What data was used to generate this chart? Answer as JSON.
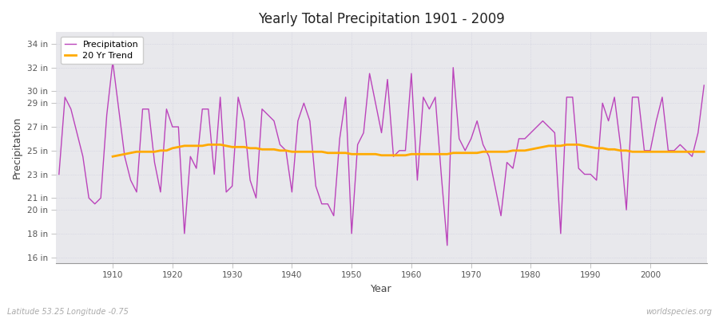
{
  "title": "Yearly Total Precipitation 1901 - 2009",
  "xlabel": "Year",
  "ylabel": "Precipitation",
  "subtitle_left": "Latitude 53.25 Longitude -0.75",
  "subtitle_right": "worldspecies.org",
  "outer_bg_color": "#ffffff",
  "plot_bg_color": "#e8e8ec",
  "line_color": "#bb44bb",
  "trend_color": "#ffaa00",
  "ylim": [
    15.5,
    35.0
  ],
  "yticks": [
    16,
    18,
    20,
    21,
    23,
    25,
    27,
    29,
    30,
    32,
    34
  ],
  "xlim": [
    1900.5,
    2009.5
  ],
  "years": [
    1901,
    1902,
    1903,
    1904,
    1905,
    1906,
    1907,
    1908,
    1909,
    1910,
    1911,
    1912,
    1913,
    1914,
    1915,
    1916,
    1917,
    1918,
    1919,
    1920,
    1921,
    1922,
    1923,
    1924,
    1925,
    1926,
    1927,
    1928,
    1929,
    1930,
    1931,
    1932,
    1933,
    1934,
    1935,
    1936,
    1937,
    1938,
    1939,
    1940,
    1941,
    1942,
    1943,
    1944,
    1945,
    1946,
    1947,
    1948,
    1949,
    1950,
    1951,
    1952,
    1953,
    1954,
    1955,
    1956,
    1957,
    1958,
    1959,
    1960,
    1961,
    1962,
    1963,
    1964,
    1965,
    1966,
    1967,
    1968,
    1969,
    1970,
    1971,
    1972,
    1973,
    1974,
    1975,
    1976,
    1977,
    1978,
    1979,
    1980,
    1981,
    1982,
    1983,
    1984,
    1985,
    1986,
    1987,
    1988,
    1989,
    1990,
    1991,
    1992,
    1993,
    1994,
    1995,
    1996,
    1997,
    1998,
    1999,
    2000,
    2001,
    2002,
    2003,
    2004,
    2005,
    2006,
    2007,
    2008,
    2009
  ],
  "precip": [
    23.0,
    29.5,
    28.5,
    26.5,
    24.5,
    21.0,
    20.5,
    21.0,
    28.0,
    32.5,
    28.5,
    24.5,
    22.5,
    21.5,
    28.5,
    28.5,
    24.0,
    21.5,
    28.5,
    27.0,
    27.0,
    18.0,
    24.5,
    23.5,
    28.5,
    28.5,
    23.0,
    29.5,
    21.5,
    22.0,
    29.5,
    27.5,
    22.5,
    21.0,
    28.5,
    28.0,
    27.5,
    25.5,
    25.0,
    21.5,
    27.5,
    29.0,
    27.5,
    22.0,
    20.5,
    20.5,
    19.5,
    26.0,
    29.5,
    18.0,
    25.5,
    26.5,
    31.5,
    29.0,
    26.5,
    31.0,
    24.5,
    25.0,
    25.0,
    31.5,
    22.5,
    29.5,
    28.5,
    29.5,
    23.0,
    17.0,
    32.0,
    26.0,
    25.0,
    26.0,
    27.5,
    25.5,
    24.5,
    22.0,
    19.5,
    24.0,
    23.5,
    26.0,
    26.0,
    26.5,
    27.0,
    27.5,
    27.0,
    26.5,
    18.0,
    29.5,
    29.5,
    23.5,
    23.0,
    23.0,
    22.5,
    29.0,
    27.5,
    29.5,
    25.5,
    20.0,
    29.5,
    29.5,
    25.0,
    25.0,
    27.5,
    29.5,
    25.0,
    25.0,
    25.5,
    25.0,
    24.5,
    26.5,
    30.5
  ],
  "trend": [
    null,
    null,
    null,
    null,
    null,
    null,
    null,
    null,
    null,
    24.5,
    24.6,
    24.7,
    24.8,
    24.9,
    24.9,
    24.9,
    24.9,
    25.0,
    25.0,
    25.2,
    25.3,
    25.4,
    25.4,
    25.4,
    25.4,
    25.5,
    25.5,
    25.5,
    25.4,
    25.3,
    25.3,
    25.3,
    25.2,
    25.2,
    25.1,
    25.1,
    25.1,
    25.0,
    25.0,
    24.9,
    24.9,
    24.9,
    24.9,
    24.9,
    24.9,
    24.8,
    24.8,
    24.8,
    24.8,
    24.7,
    24.7,
    24.7,
    24.7,
    24.7,
    24.6,
    24.6,
    24.6,
    24.6,
    24.6,
    24.7,
    24.7,
    24.7,
    24.7,
    24.7,
    24.7,
    24.7,
    24.8,
    24.8,
    24.8,
    24.8,
    24.8,
    24.9,
    24.9,
    24.9,
    24.9,
    24.9,
    25.0,
    25.0,
    25.0,
    25.1,
    25.2,
    25.3,
    25.4,
    25.4,
    25.4,
    25.5,
    25.5,
    25.5,
    25.4,
    25.3,
    25.2,
    25.2,
    25.1,
    25.1,
    25.0,
    25.0,
    24.9,
    24.9,
    24.9,
    24.9,
    24.9,
    24.9,
    24.9,
    24.9,
    24.9,
    24.9,
    24.9,
    24.9,
    24.9
  ]
}
